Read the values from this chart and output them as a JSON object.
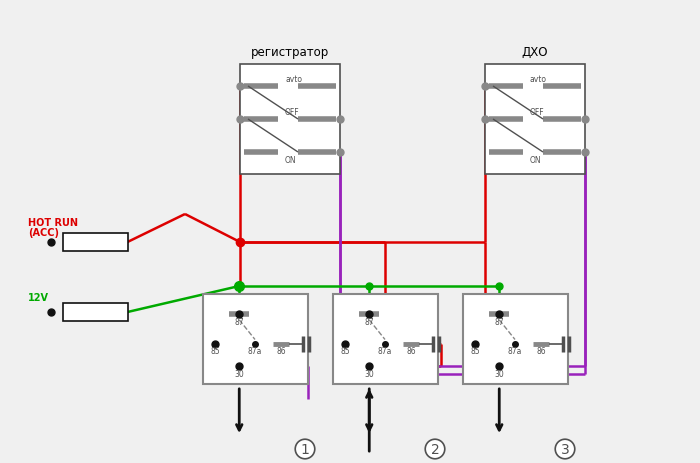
{
  "bg_color": "#f0f0f0",
  "switch1_label": "регистратор",
  "switch2_label": "ДХО",
  "hot_run_line1": "HOT RUN",
  "hot_run_line2": "(ACC)",
  "v12_label": "12V",
  "red": "#dd0000",
  "green": "#00aa00",
  "purple": "#9922bb",
  "black": "#111111",
  "gray": "#888888",
  "dark_gray": "#505050",
  "relay_border": "#888888",
  "lw": 1.8
}
